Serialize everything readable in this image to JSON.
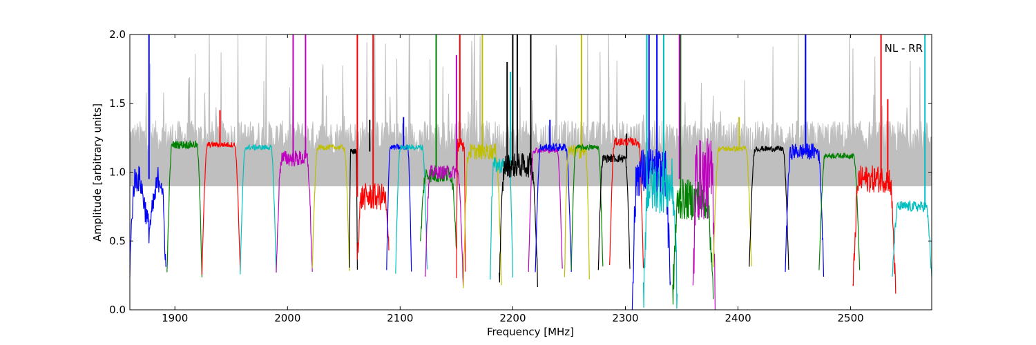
{
  "chart_data": {
    "type": "line",
    "xlabel": "Frequency [MHz]",
    "ylabel": "Amplitude [arbitrary units]",
    "annotation": "NL - RR",
    "xlim": [
      1860,
      2572
    ],
    "ylim": [
      0.0,
      2.0
    ],
    "xticks": [
      1900,
      2000,
      2100,
      2200,
      2300,
      2400,
      2500
    ],
    "xtick_labels": [
      "1900",
      "2000",
      "2100",
      "2200",
      "2300",
      "2400",
      "2500"
    ],
    "yticks": [
      0.0,
      0.5,
      1.0,
      1.5,
      2.0
    ],
    "ytick_labels": [
      "0.0",
      "0.5",
      "1.0",
      "1.5",
      "2.0"
    ],
    "grid": false,
    "background_color": "#bfbfbf",
    "colors": [
      "#0000ff",
      "#008000",
      "#ff0000",
      "#00bfbf",
      "#bf00bf",
      "#bfbf00",
      "#000000"
    ],
    "segments": [
      {
        "color": "#0000ff",
        "start": 1860,
        "end": 1892,
        "level": 0.95,
        "dips": [
          [
            1877,
            0.58
          ]
        ],
        "noise": 0.1,
        "spikes": [
          [
            1877,
            2.0
          ]
        ]
      },
      {
        "color": "#008000",
        "start": 1893,
        "end": 1924,
        "level": 1.2,
        "edge": 0.26,
        "noise": 0.03
      },
      {
        "color": "#ff0000",
        "start": 1924,
        "end": 1958,
        "level": 1.2,
        "edge": 0.27,
        "noise": 0.02,
        "spikes": [
          [
            1940,
            1.45
          ]
        ]
      },
      {
        "color": "#00bfbf",
        "start": 1958,
        "end": 1990,
        "level": 1.18,
        "edge": 0.27,
        "noise": 0.02
      },
      {
        "color": "#bf00bf",
        "start": 1990,
        "end": 2022,
        "level": 1.1,
        "edge": 0.25,
        "noise": 0.06,
        "spikes": [
          [
            2005,
            2.0
          ],
          [
            2016,
            2.0
          ]
        ]
      },
      {
        "color": "#bfbf00",
        "start": 2022,
        "end": 2055,
        "level": 1.18,
        "edge": 0.3,
        "noise": 0.02
      },
      {
        "color": "#000000",
        "start": 2055,
        "end": 2062,
        "level": 1.15,
        "edge": 0.3,
        "noise": 0.02,
        "spikes": [
          [
            2073,
            1.38
          ]
        ]
      },
      {
        "color": "#ff0000",
        "start": 2062,
        "end": 2090,
        "level": 0.82,
        "edge": 0.4,
        "noise": 0.1,
        "spikes": [
          [
            2062,
            2.0
          ],
          [
            2076,
            2.0
          ]
        ]
      },
      {
        "color": "#0000ff",
        "start": 2088,
        "end": 2110,
        "level": 1.18,
        "edge": 0.29,
        "noise": 0.02,
        "spikes": [
          [
            2103,
            1.4
          ]
        ]
      },
      {
        "color": "#00bfbf",
        "start": 2096,
        "end": 2124,
        "level": 1.18,
        "edge": 0.28,
        "noise": 0.02
      },
      {
        "color": "#008000",
        "start": 2118,
        "end": 2150,
        "level": 0.98,
        "edge": 0.47,
        "noise": 0.06,
        "spikes": [
          [
            2132,
            2.0
          ]
        ]
      },
      {
        "color": "#bf00bf",
        "start": 2122,
        "end": 2156,
        "level": 1.0,
        "edge": 0.2,
        "noise": 0.05,
        "spikes": [
          [
            2150,
            1.85
          ]
        ]
      },
      {
        "color": "#ff0000",
        "start": 2150,
        "end": 2158,
        "level": 1.2,
        "edge": 0.23,
        "noise": 0.05,
        "spikes": [
          [
            2153,
            2.0
          ]
        ]
      },
      {
        "color": "#bfbf00",
        "start": 2156,
        "end": 2190,
        "level": 1.15,
        "edge": 0.18,
        "noise": 0.06,
        "spikes": [
          [
            2173,
            2.0
          ]
        ]
      },
      {
        "color": "#00bfbf",
        "start": 2180,
        "end": 2200,
        "level": 1.05,
        "edge": 0.27,
        "noise": 0.06,
        "spikes": [
          [
            2198,
            1.73
          ]
        ]
      },
      {
        "color": "#000000",
        "start": 2188,
        "end": 2222,
        "level": 1.05,
        "edge": 0.2,
        "noise": 0.09,
        "spikes": [
          [
            2195,
            1.8
          ],
          [
            2200,
            2.0
          ],
          [
            2204,
            2.0
          ],
          [
            2216,
            2.0
          ]
        ]
      },
      {
        "color": "#bf00bf",
        "start": 2214,
        "end": 2244,
        "level": 1.16,
        "edge": 0.28,
        "noise": 0.02
      },
      {
        "color": "#0000ff",
        "start": 2220,
        "end": 2252,
        "level": 1.18,
        "edge": 0.27,
        "noise": 0.03,
        "spikes": [
          [
            2233,
            1.38
          ]
        ]
      },
      {
        "color": "#bfbf00",
        "start": 2246,
        "end": 2268,
        "level": 1.15,
        "edge": 0.26,
        "noise": 0.05,
        "spikes": [
          [
            2261,
            2.0
          ]
        ]
      },
      {
        "color": "#008000",
        "start": 2252,
        "end": 2280,
        "level": 1.18,
        "edge": 0.3,
        "noise": 0.02
      },
      {
        "color": "#000000",
        "start": 2276,
        "end": 2304,
        "level": 1.1,
        "edge": 0.3,
        "noise": 0.03,
        "spikes": [
          [
            2301,
            1.28
          ]
        ]
      },
      {
        "color": "#ff0000",
        "start": 2286,
        "end": 2316,
        "level": 1.22,
        "edge": 0.3,
        "noise": 0.03
      },
      {
        "color": "#0000ff",
        "start": 2306,
        "end": 2340,
        "level": 1.0,
        "edge": 0.08,
        "noise": 0.18,
        "spikes": [
          [
            2321,
            2.0
          ],
          [
            2328,
            2.0
          ]
        ]
      },
      {
        "color": "#00bfbf",
        "start": 2316,
        "end": 2346,
        "level": 0.9,
        "edge": 0.1,
        "noise": 0.2,
        "spikes": [
          [
            2319,
            2.0
          ],
          [
            2334,
            2.0
          ]
        ]
      },
      {
        "color": "#008000",
        "start": 2342,
        "end": 2378,
        "level": 0.8,
        "edge": 0.05,
        "noise": 0.15,
        "spikes": [
          [
            2349,
            2.0
          ]
        ]
      },
      {
        "color": "#bf00bf",
        "start": 2360,
        "end": 2380,
        "level": 0.95,
        "edge": 0.0,
        "noise": 0.3,
        "spikes": [
          [
            2348,
            2.0
          ]
        ]
      },
      {
        "color": "#bfbf00",
        "start": 2378,
        "end": 2412,
        "level": 1.17,
        "edge": 0.3,
        "noise": 0.02,
        "spikes": [
          [
            2401,
            1.4
          ]
        ]
      },
      {
        "color": "#000000",
        "start": 2410,
        "end": 2445,
        "level": 1.17,
        "edge": 0.3,
        "noise": 0.02
      },
      {
        "color": "#0000ff",
        "start": 2442,
        "end": 2476,
        "level": 1.15,
        "edge": 0.3,
        "noise": 0.06,
        "spikes": [
          [
            2460,
            2.0
          ]
        ]
      },
      {
        "color": "#008000",
        "start": 2472,
        "end": 2508,
        "level": 1.12,
        "edge": 0.29,
        "noise": 0.02
      },
      {
        "color": "#ff0000",
        "start": 2502,
        "end": 2540,
        "level": 0.95,
        "edge": 0.1,
        "noise": 0.1,
        "spikes": [
          [
            2527,
            2.0
          ],
          [
            2533,
            1.53
          ]
        ]
      },
      {
        "color": "#00bfbf",
        "start": 2537,
        "end": 2572,
        "level": 0.75,
        "edge": 0.22,
        "noise": 0.04,
        "spikes": [
          [
            2566,
            2.0
          ]
        ]
      }
    ]
  }
}
